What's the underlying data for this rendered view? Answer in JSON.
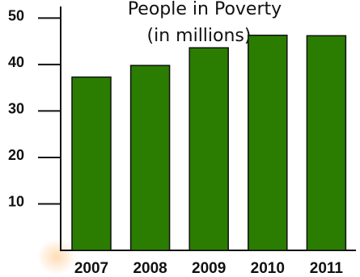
{
  "chart_data": {
    "type": "bar",
    "title": "People in Poverty",
    "subtitle": "(in millions)",
    "categories": [
      "2007",
      "2008",
      "2009",
      "2010",
      "2011"
    ],
    "values": [
      37.3,
      39.8,
      43.6,
      46.3,
      46.2
    ],
    "yticks": [
      10,
      20,
      30,
      40,
      50
    ],
    "ylim": [
      0,
      52.5
    ],
    "bar_color": "#2a7d00",
    "grid": false,
    "legend": "none"
  }
}
